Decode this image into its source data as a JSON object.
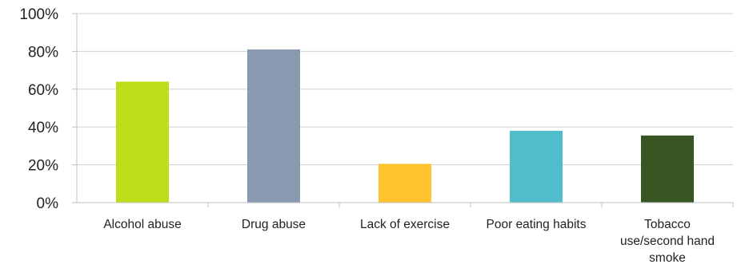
{
  "chart_data": {
    "type": "bar",
    "title": "",
    "xlabel": "",
    "ylabel": "",
    "categories": [
      "Alcohol abuse",
      "Drug abuse",
      "Lack of exercise",
      "Poor eating habits",
      "Tobacco use/second hand smoke"
    ],
    "category_label_lines": [
      [
        "Alcohol abuse"
      ],
      [
        "Drug abuse"
      ],
      [
        "Lack of exercise"
      ],
      [
        "Poor eating habits"
      ],
      [
        "Tobacco",
        "use/second hand",
        "smoke"
      ]
    ],
    "values": [
      64,
      81,
      20.5,
      38,
      35.5
    ],
    "bar_colors": [
      "#c0dd1a",
      "#8899b0",
      "#ffc32e",
      "#4fbdcb",
      "#375623"
    ],
    "ylim": [
      0,
      100
    ],
    "yticks": [
      0,
      20,
      40,
      60,
      80,
      100
    ],
    "ytick_labels": [
      "0%",
      "20%",
      "40%",
      "60%",
      "80%",
      "100%"
    ],
    "grid": true,
    "legend": "none",
    "gridline_color": "#d0d0d0",
    "axis_color": "#bfbfbf"
  }
}
